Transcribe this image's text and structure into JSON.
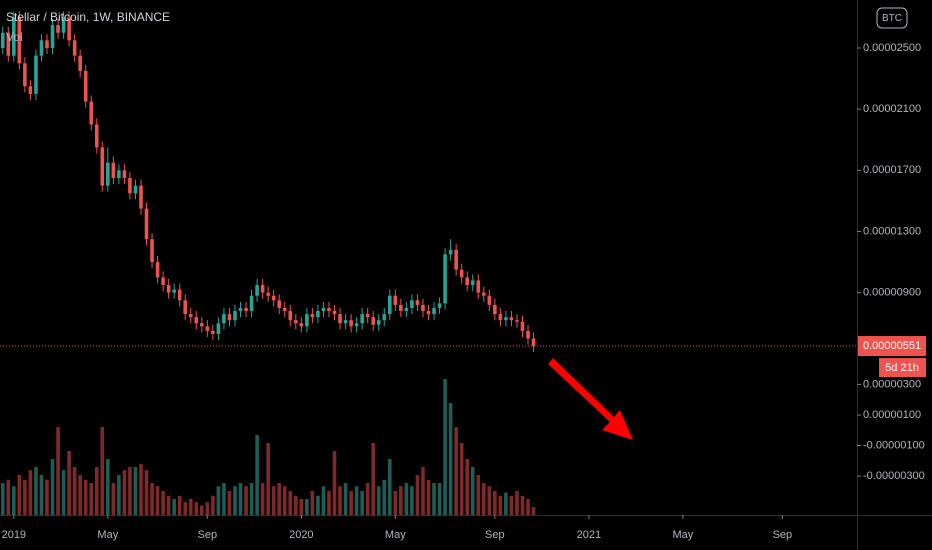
{
  "chart_data": {
    "type": "candlestick",
    "title": "Stellar / Bitcoin, 1W, BINANCE",
    "volume_label": "Vol",
    "currency": "BTC",
    "last_price": {
      "value": 5.51e-06,
      "label": "0.00000551"
    },
    "countdown": "5d 21h",
    "up_color": "#26a69a",
    "down_color": "#ef5350",
    "up_volume_color": "#1d5e58",
    "down_volume_color": "#7f2a29",
    "open": [
      2.5e-05,
      2.6e-05,
      2.45e-05,
      2.7e-05,
      2.4e-05,
      2.25e-05,
      2.2e-05,
      2.45e-05,
      2.55e-05,
      2.5e-05,
      2.65e-05,
      2.6e-05,
      2.7e-05,
      2.55e-05,
      2.45e-05,
      2.35e-05,
      2.15e-05,
      2e-05,
      1.85e-05,
      1.6e-05,
      1.75e-05,
      1.65e-05,
      1.7e-05,
      1.65e-05,
      1.55e-05,
      1.6e-05,
      1.45e-05,
      1.25e-05,
      1.1e-05,
      1e-05,
      9.5e-06,
      9e-06,
      9.2e-06,
      8.5e-06,
      7.6e-06,
      7.4e-06,
      7e-06,
      6.8e-06,
      6.5e-06,
      6.3e-06,
      7e-06,
      7.6e-06,
      7.2e-06,
      7.8e-06,
      8e-06,
      7.8e-06,
      8.8e-06,
      9.5e-06,
      9e-06,
      8.8e-06,
      8.5e-06,
      8e-06,
      7.8e-06,
      7.2e-06,
      7e-06,
      6.8e-06,
      7.6e-06,
      7.4e-06,
      7.8e-06,
      8e-06,
      7.8e-06,
      7.6e-06,
      7e-06,
      7.2e-06,
      6.8e-06,
      7e-06,
      7.6e-06,
      7.4e-06,
      6.9e-06,
      7.2e-06,
      7.6e-06,
      8.8e-06,
      8.2e-06,
      7.8e-06,
      8e-06,
      8.5e-06,
      8.2e-06,
      7.8e-06,
      7.6e-06,
      8e-06,
      8.3e-06,
      1.15e-05,
      1.18e-05,
      1.05e-05,
      1e-05,
      9.5e-06,
      9.8e-06,
      9e-06,
      8.8e-06,
      8.2e-06,
      7.6e-06,
      7.2e-06,
      7.4e-06,
      7.2e-06,
      7.1e-06,
      6.5e-06,
      6e-06
    ],
    "high": [
      2.64e-05,
      2.64e-05,
      2.74e-05,
      2.74e-05,
      2.44e-05,
      2.29e-05,
      2.49e-05,
      2.59e-05,
      2.59e-05,
      2.69e-05,
      2.69e-05,
      2.74e-05,
      2.74e-05,
      2.59e-05,
      2.49e-05,
      2.39e-05,
      2.19e-05,
      2.04e-05,
      1.89e-05,
      1.85e-05,
      1.79e-05,
      1.74e-05,
      1.74e-05,
      1.69e-05,
      1.64e-05,
      1.64e-05,
      1.49e-05,
      1.29e-05,
      1.14e-05,
      1.04e-05,
      9.9e-06,
      9.6e-06,
      9.6e-06,
      8.9e-06,
      8e-06,
      7.8e-06,
      7.4e-06,
      7.2e-06,
      6.9e-06,
      7.4e-06,
      8e-06,
      8e-06,
      8.2e-06,
      8.4e-06,
      8.4e-06,
      9.2e-06,
      9.9e-06,
      9.9e-06,
      9.4e-06,
      9.2e-06,
      8.9e-06,
      8.4e-06,
      8.2e-06,
      7.6e-06,
      7.4e-06,
      8e-06,
      8e-06,
      8.2e-06,
      8.4e-06,
      8.4e-06,
      8.2e-06,
      8e-06,
      7.6e-06,
      7.6e-06,
      7.4e-06,
      8e-06,
      8e-06,
      7.8e-06,
      7.6e-06,
      8e-06,
      9.2e-06,
      9.2e-06,
      8.6e-06,
      8.4e-06,
      8.9e-06,
      8.9e-06,
      8.6e-06,
      8.2e-06,
      8.4e-06,
      8.7e-06,
      1.19e-05,
      1.25e-05,
      1.22e-05,
      1.09e-05,
      1.04e-05,
      1.02e-05,
      1.02e-05,
      9.4e-06,
      9.2e-06,
      8.6e-06,
      8e-06,
      7.8e-06,
      7.8e-06,
      7.6e-06,
      7.5e-06,
      6.9e-06,
      6.4e-06
    ],
    "low": [
      2.46e-05,
      2.41e-05,
      2.41e-05,
      2.36e-05,
      2.21e-05,
      2.16e-05,
      2.16e-05,
      2.41e-05,
      2.46e-05,
      2.46e-05,
      2.56e-05,
      2.56e-05,
      2.51e-05,
      2.41e-05,
      2.31e-05,
      2.11e-05,
      1.96e-05,
      1.81e-05,
      1.56e-05,
      1.56e-05,
      1.61e-05,
      1.61e-05,
      1.61e-05,
      1.51e-05,
      1.51e-05,
      1.41e-05,
      1.21e-05,
      1.06e-05,
      9.6e-06,
      9.1e-06,
      8.6e-06,
      8.6e-06,
      8.1e-06,
      7.2e-06,
      7e-06,
      6.6e-06,
      6.4e-06,
      6.1e-06,
      5.9e-06,
      5.9e-06,
      6.6e-06,
      6.8e-06,
      6.8e-06,
      7.4e-06,
      7.4e-06,
      7.4e-06,
      8.4e-06,
      8.6e-06,
      8.4e-06,
      8.1e-06,
      7.6e-06,
      7.4e-06,
      6.8e-06,
      6.6e-06,
      6.4e-06,
      6.4e-06,
      7e-06,
      7e-06,
      7.4e-06,
      7.4e-06,
      7.2e-06,
      6.6e-06,
      6.6e-06,
      6.4e-06,
      6.4e-06,
      6.6e-06,
      7e-06,
      6.5e-06,
      6.5e-06,
      6.8e-06,
      7.2e-06,
      7.8e-06,
      7.4e-06,
      7.4e-06,
      7.6e-06,
      7.8e-06,
      7.4e-06,
      7.2e-06,
      7.2e-06,
      7.6e-06,
      7.9e-06,
      1.11e-05,
      1.01e-05,
      9.6e-06,
      9.1e-06,
      9.1e-06,
      8.6e-06,
      8.4e-06,
      7.8e-06,
      7.2e-06,
      6.8e-06,
      6.8e-06,
      6.8e-06,
      6.7e-06,
      6.1e-06,
      5.6e-06,
      5.11e-06
    ],
    "close": [
      2.6e-05,
      2.45e-05,
      2.7e-05,
      2.4e-05,
      2.25e-05,
      2.2e-05,
      2.45e-05,
      2.55e-05,
      2.5e-05,
      2.65e-05,
      2.6e-05,
      2.7e-05,
      2.55e-05,
      2.45e-05,
      2.35e-05,
      2.15e-05,
      2e-05,
      1.85e-05,
      1.6e-05,
      1.75e-05,
      1.65e-05,
      1.7e-05,
      1.65e-05,
      1.55e-05,
      1.6e-05,
      1.45e-05,
      1.25e-05,
      1.1e-05,
      1e-05,
      9.5e-06,
      9e-06,
      9.2e-06,
      8.5e-06,
      7.6e-06,
      7.4e-06,
      7e-06,
      6.8e-06,
      6.5e-06,
      6.3e-06,
      7e-06,
      7.6e-06,
      7.2e-06,
      7.8e-06,
      8e-06,
      7.8e-06,
      8.8e-06,
      9.5e-06,
      9e-06,
      8.8e-06,
      8.5e-06,
      8e-06,
      7.8e-06,
      7.2e-06,
      7e-06,
      6.8e-06,
      7.6e-06,
      7.4e-06,
      7.8e-06,
      8e-06,
      7.8e-06,
      7.6e-06,
      7e-06,
      7.2e-06,
      6.8e-06,
      7e-06,
      7.6e-06,
      7.4e-06,
      6.9e-06,
      7.2e-06,
      7.6e-06,
      8.8e-06,
      8.2e-06,
      7.8e-06,
      8e-06,
      8.5e-06,
      8.2e-06,
      7.8e-06,
      7.6e-06,
      8e-06,
      8.3e-06,
      1.15e-05,
      1.18e-05,
      1.05e-05,
      1e-05,
      9.5e-06,
      9.8e-06,
      9e-06,
      8.8e-06,
      8.2e-06,
      7.6e-06,
      7.2e-06,
      7.4e-06,
      7.2e-06,
      7.1e-06,
      6.5e-06,
      6e-06,
      5.51e-06
    ],
    "volume": [
      20,
      22,
      18,
      25,
      22,
      28,
      30,
      25,
      22,
      35,
      55,
      28,
      40,
      30,
      25,
      22,
      20,
      30,
      55,
      35,
      20,
      25,
      28,
      30,
      30,
      32,
      28,
      20,
      18,
      15,
      12,
      10,
      12,
      8,
      10,
      8,
      6,
      8,
      12,
      18,
      20,
      15,
      18,
      20,
      18,
      20,
      50,
      20,
      45,
      18,
      20,
      18,
      15,
      12,
      10,
      10,
      15,
      12,
      18,
      15,
      40,
      18,
      20,
      15,
      18,
      15,
      20,
      45,
      18,
      22,
      35,
      15,
      18,
      20,
      18,
      25,
      30,
      22,
      20,
      20,
      85,
      70,
      55,
      45,
      35,
      30,
      25,
      20,
      18,
      15,
      12,
      14,
      12,
      15,
      12,
      10,
      5
    ],
    "vlim": [
      0,
      100
    ],
    "ylim": [
      -5.54e-06,
      2.814e-05
    ],
    "yticks": [
      {
        "value": 2.5e-05,
        "label": "0.00002500"
      },
      {
        "value": 2.1e-05,
        "label": "0.00002100"
      },
      {
        "value": 1.7e-05,
        "label": "0.00001700"
      },
      {
        "value": 1.3e-05,
        "label": "0.00001300"
      },
      {
        "value": 9e-06,
        "label": "0.00000900"
      },
      {
        "value": 3e-06,
        "label": "0.00000300"
      },
      {
        "value": 1e-06,
        "label": "0.00000100"
      },
      {
        "value": -1e-06,
        "label": "-0.00000100"
      },
      {
        "value": -3e-06,
        "label": "-0.00000300"
      }
    ],
    "xlim": [
      0,
      155
    ],
    "xticks": [
      {
        "value": 2,
        "label": "2019"
      },
      {
        "value": 19,
        "label": "May"
      },
      {
        "value": 37,
        "label": "Sep"
      },
      {
        "value": 54,
        "label": "2020"
      },
      {
        "value": 71,
        "label": "May"
      },
      {
        "value": 89,
        "label": "Sep"
      },
      {
        "value": 106,
        "label": "2021"
      },
      {
        "value": 123,
        "label": "May"
      },
      {
        "value": 141,
        "label": "Sep"
      }
    ]
  }
}
